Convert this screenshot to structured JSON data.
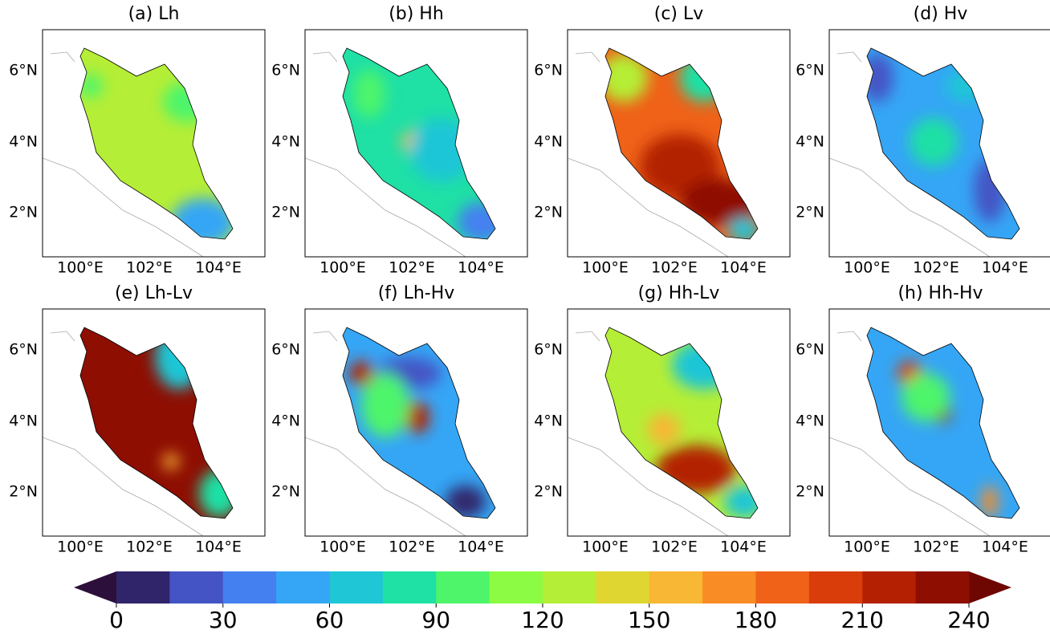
{
  "panels": [
    {
      "title": "(a) Lh"
    },
    {
      "title": "(b) Hh"
    },
    {
      "title": "(c) Lv"
    },
    {
      "title": "(d) Hv"
    },
    {
      "title": "(e) Lh-Lv"
    },
    {
      "title": "(f) Lh-Hv"
    },
    {
      "title": "(g) Hh-Lv"
    },
    {
      "title": "(h) Hh-Hv"
    }
  ],
  "lat_ticks": [
    "6°N",
    "4°N",
    "2°N"
  ],
  "lon_ticks": [
    "100°E",
    "102°E",
    "104°E"
  ],
  "colorbar": {
    "levels": [
      0,
      15,
      30,
      45,
      60,
      75,
      90,
      105,
      120,
      135,
      150,
      165,
      180,
      195,
      210,
      225,
      240
    ],
    "ticks": [
      0,
      30,
      60,
      90,
      120,
      150,
      180,
      210,
      240
    ],
    "colors": [
      "#30256b",
      "#4454c4",
      "#4480f0",
      "#35a6f5",
      "#1ec6d6",
      "#1fe0a5",
      "#4ef56a",
      "#8cfb43",
      "#b5ee36",
      "#e0d632",
      "#f8b734",
      "#f98c25",
      "#ef6218",
      "#d93d0a",
      "#b32102",
      "#8e0e02"
    ],
    "under_color": "#2d0f3c",
    "over_color": "#6e0602",
    "extend": "both"
  }
}
